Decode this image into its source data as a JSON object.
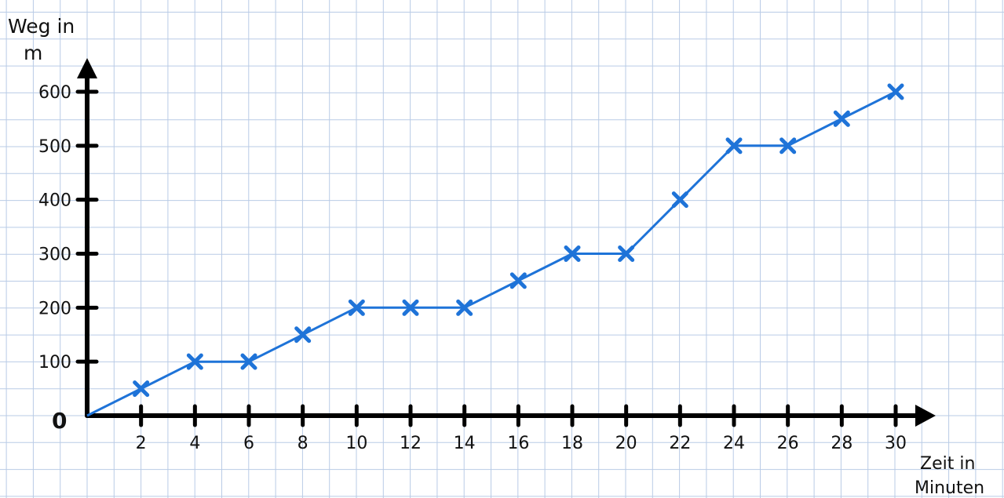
{
  "chart_data": {
    "type": "line",
    "title": "",
    "xlabel": "Zeit in Minuten",
    "xlabel_lines": [
      "Zeit in",
      "Minuten"
    ],
    "ylabel": "Weg in m",
    "ylabel_lines": [
      "Weg in",
      "m"
    ],
    "origin_label": "0",
    "x_ticks": [
      "2",
      "4",
      "6",
      "8",
      "10",
      "12",
      "14",
      "16",
      "18",
      "20",
      "22",
      "24",
      "26",
      "28",
      "30"
    ],
    "y_ticks": [
      "100",
      "200",
      "300",
      "400",
      "500",
      "600"
    ],
    "xlim": [
      0,
      30
    ],
    "ylim": [
      0,
      600
    ],
    "grid": true,
    "line_color": "#1e73d8",
    "axis_color": "#000000",
    "grid_color": "#b9cbe6",
    "series": [
      {
        "x": [
          0,
          2,
          4,
          6,
          8,
          10,
          12,
          14,
          16,
          18,
          20,
          22,
          24,
          26,
          28,
          30
        ],
        "y": [
          0,
          50,
          100,
          100,
          150,
          200,
          200,
          200,
          250,
          300,
          300,
          400,
          500,
          500,
          550,
          600
        ]
      }
    ]
  }
}
